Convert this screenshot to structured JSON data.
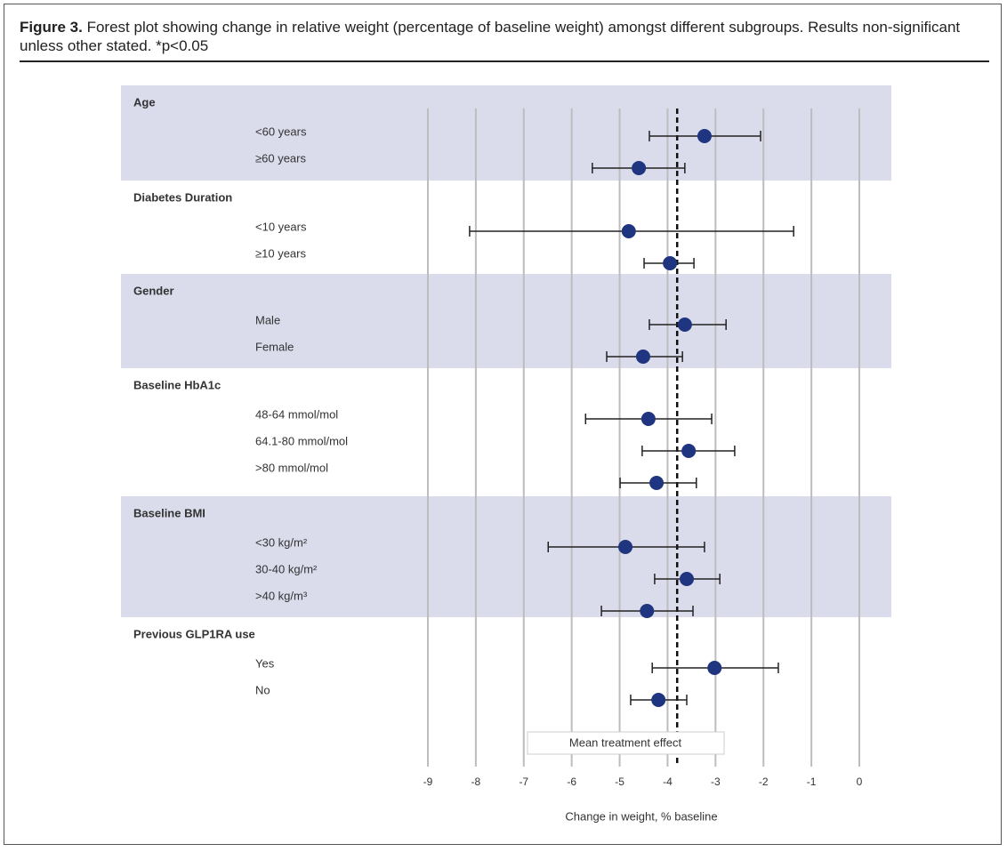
{
  "chart_data": {
    "type": "forest",
    "figure_label": "Figure 3.",
    "caption": "Forest plot showing change in relative weight (percentage of baseline weight) amongst different subgroups. Results non-significant unless other stated. *p<0.05",
    "xlabel": "Change in weight, % baseline",
    "xlim": [
      -9,
      0
    ],
    "xticks": [
      -9,
      -8,
      -7,
      -6,
      -5,
      -4,
      -3,
      -2,
      -1,
      0
    ],
    "grid": true,
    "color": "#1f3580",
    "reference": {
      "label": "Mean treatment effect",
      "value": -3.8
    },
    "groups": [
      {
        "name": "Age",
        "categories": [
          "<60 years",
          "≥60 years"
        ],
        "values": [
          -3.23,
          -4.6
        ],
        "lower": [
          -4.38,
          -5.57
        ],
        "upper": [
          -2.06,
          -3.64
        ]
      },
      {
        "name": "Diabetes Duration",
        "categories": [
          "<10 years",
          "≥10 years"
        ],
        "values": [
          -4.81,
          -3.95
        ],
        "lower": [
          -8.13,
          -4.49
        ],
        "upper": [
          -1.37,
          -3.45
        ]
      },
      {
        "name": "Gender",
        "categories": [
          "Male",
          "Female"
        ],
        "values": [
          -3.64,
          -4.51
        ],
        "lower": [
          -4.38,
          -5.27
        ],
        "upper": [
          -2.78,
          -3.69
        ]
      },
      {
        "name": "Baseline HbA1c",
        "categories": [
          "48-64 mmol/mol",
          "64.1-80 mmol/mol",
          ">80 mmol/mol"
        ],
        "values": [
          -4.4,
          -3.56,
          -4.23
        ],
        "lower": [
          -5.71,
          -4.53,
          -4.99
        ],
        "upper": [
          -3.08,
          -2.6,
          -3.4
        ]
      },
      {
        "name": "Baseline BMI",
        "categories": [
          "<30 kg/m²",
          "30-40 kg/m²",
          ">40 kg/m³"
        ],
        "values": [
          -4.88,
          -3.6,
          -4.43
        ],
        "lower": [
          -6.49,
          -4.27,
          -5.38
        ],
        "upper": [
          -3.23,
          -2.91,
          -3.47
        ]
      },
      {
        "name": "Previous GLP1RA use",
        "categories": [
          "Yes",
          "No"
        ],
        "values": [
          -3.02,
          -4.19
        ],
        "lower": [
          -4.32,
          -4.77
        ],
        "upper": [
          -1.69,
          -3.6
        ]
      }
    ]
  }
}
